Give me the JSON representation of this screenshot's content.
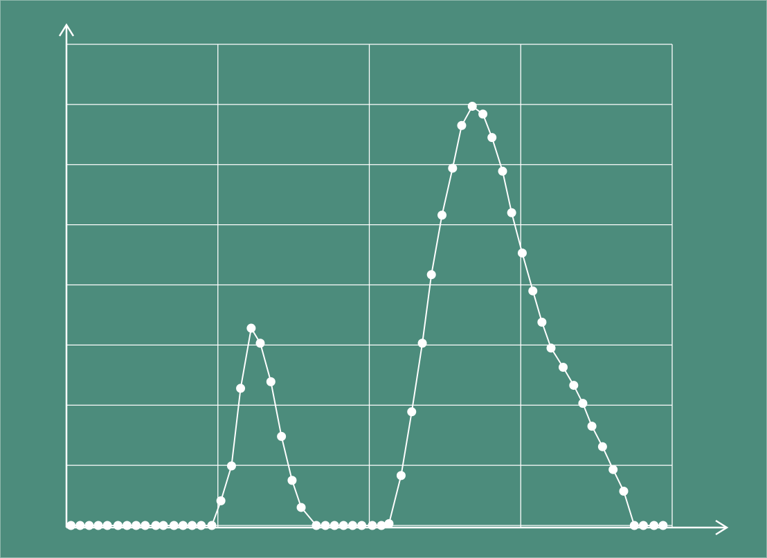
{
  "chart_data": {
    "type": "line",
    "color": "#ffffff",
    "grid": true,
    "xlim": [
      0,
      4
    ],
    "xticks": [
      0,
      1,
      2,
      3,
      4
    ],
    "ylim": [
      0,
      8
    ],
    "yticks": [
      0,
      1,
      2,
      3,
      4,
      5,
      6,
      7,
      8
    ],
    "x": [
      0.03,
      0.09,
      0.15,
      0.21,
      0.27,
      0.34,
      0.4,
      0.46,
      0.52,
      0.59,
      0.64,
      0.71,
      0.77,
      0.83,
      0.89,
      0.96,
      1.02,
      1.09,
      1.15,
      1.22,
      1.28,
      1.35,
      1.42,
      1.49,
      1.55,
      1.65,
      1.71,
      1.77,
      1.83,
      1.89,
      1.95,
      2.02,
      2.08,
      2.13,
      2.21,
      2.28,
      2.35,
      2.41,
      2.48,
      2.55,
      2.61,
      2.68,
      2.75,
      2.81,
      2.88,
      2.94,
      3.01,
      3.08,
      3.14,
      3.2,
      3.28,
      3.35,
      3.41,
      3.47,
      3.54,
      3.61,
      3.68,
      3.75,
      3.81,
      3.88,
      3.94
    ],
    "values": [
      0,
      0,
      0,
      0,
      0,
      0,
      0,
      0,
      0,
      0,
      0,
      0,
      0,
      0,
      0,
      0,
      0.41,
      0.99,
      2.28,
      3.28,
      3.03,
      2.39,
      1.48,
      0.75,
      0.3,
      0,
      0,
      0,
      0,
      0,
      0,
      0,
      0,
      0.03,
      0.83,
      1.89,
      3.03,
      4.17,
      5.16,
      5.94,
      6.65,
      6.97,
      6.84,
      6.45,
      5.89,
      5.2,
      4.53,
      3.9,
      3.38,
      2.95,
      2.63,
      2.33,
      2.03,
      1.65,
      1.31,
      0.93,
      0.57,
      0,
      0,
      0,
      0
    ]
  }
}
